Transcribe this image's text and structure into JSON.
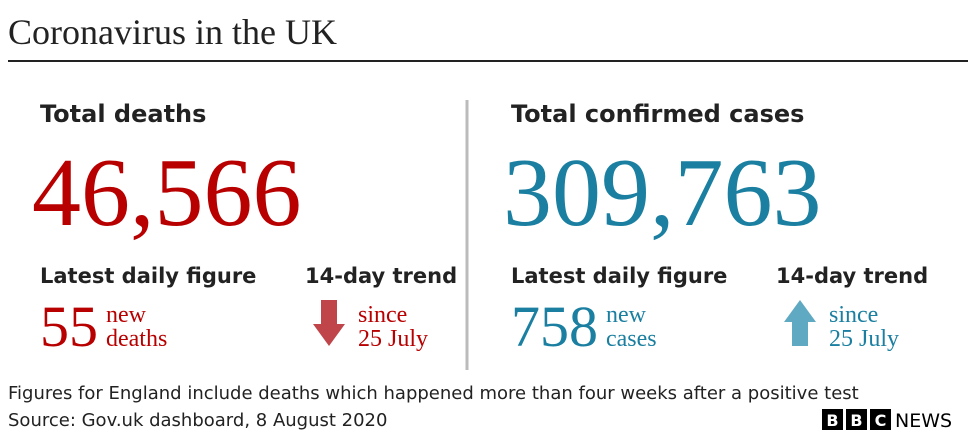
{
  "title": "Coronavirus in the UK",
  "panels": [
    {
      "heading": "Total deaths",
      "total": "46,566",
      "daily_heading": "Latest daily figure",
      "daily_value": "55",
      "daily_unit": [
        "new",
        "deaths"
      ],
      "trend_heading": "14-day trend",
      "trend_text": [
        "since",
        "25 July"
      ],
      "trend": "down",
      "color": "#b80000",
      "arrow_color": "#c0454a"
    },
    {
      "heading": "Total confirmed cases",
      "total": "309,763",
      "daily_heading": "Latest daily figure",
      "daily_value": "758",
      "daily_unit": [
        "new",
        "cases"
      ],
      "trend_heading": "14-day trend",
      "trend_text": [
        "since",
        "25 July"
      ],
      "trend": "up",
      "color": "#1a7fa0",
      "arrow_color": "#5fa9c2"
    }
  ],
  "footnote": "Figures for England include deaths which happened more than four weeks after a positive test",
  "source": "Source: Gov.uk dashboard, 8 August 2020",
  "brand": {
    "logo": [
      "B",
      "B",
      "C"
    ],
    "wordmark": "NEWS"
  }
}
